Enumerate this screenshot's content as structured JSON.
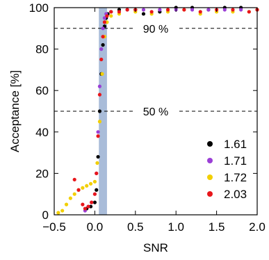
{
  "chart_data": {
    "type": "scatter",
    "xlabel": "SNR",
    "ylabel": "Acceptance [%]",
    "xlim": [
      -0.5,
      2.0
    ],
    "ylim": [
      0,
      100
    ],
    "xticks": [
      -0.5,
      0.0,
      0.5,
      1.0,
      1.5,
      2.0
    ],
    "xtick_labels": [
      "−0.5",
      "0.0",
      "0.5",
      "1.0",
      "1.5",
      "2.0"
    ],
    "yticks": [
      0,
      20,
      40,
      60,
      80,
      100
    ],
    "ytick_labels": [
      "0",
      "20",
      "40",
      "60",
      "80",
      "100"
    ],
    "grid": false,
    "legend_position": "bottom-right",
    "shaded_band": {
      "x_start": 0.05,
      "x_end": 0.15,
      "color": "#a9bcd9"
    },
    "reference_lines": [
      {
        "y": 90,
        "label": "90 %",
        "label_x": 0.75
      },
      {
        "y": 50,
        "label": "50 %",
        "label_x": 0.75
      }
    ],
    "series": [
      {
        "name": "1.61",
        "color": "#000000",
        "x": [
          -0.1,
          -0.05,
          0.0,
          0.02,
          0.04,
          0.06,
          0.08,
          0.1,
          0.12,
          0.14,
          0.16,
          0.2,
          0.3,
          0.5,
          0.6,
          0.8,
          1.0,
          1.2,
          1.4,
          1.6,
          1.8,
          2.0
        ],
        "y": [
          3,
          4,
          6,
          12,
          28,
          50,
          68,
          82,
          91,
          95,
          97,
          98,
          99,
          99,
          97,
          98,
          100,
          100,
          99,
          100,
          100,
          99
        ]
      },
      {
        "name": "1.71",
        "color": "#9b3fd6",
        "x": [
          -0.12,
          -0.08,
          -0.04,
          0.0,
          0.02,
          0.04,
          0.06,
          0.08,
          0.1,
          0.12,
          0.14,
          0.2,
          0.4,
          0.6,
          0.8,
          1.0,
          1.2,
          1.4,
          1.6,
          1.8,
          2.0
        ],
        "y": [
          2,
          4,
          6,
          10,
          20,
          40,
          62,
          80,
          90,
          95,
          97,
          98,
          99,
          99,
          99,
          99,
          99,
          99,
          99,
          99,
          99
        ]
      },
      {
        "name": "1.72",
        "color": "#f2cf00",
        "x": [
          -0.45,
          -0.4,
          -0.35,
          -0.3,
          -0.25,
          -0.2,
          -0.15,
          -0.1,
          -0.05,
          0.0,
          0.03,
          0.06,
          0.09,
          0.12,
          0.15,
          0.2,
          0.3,
          0.5,
          0.7,
          0.9,
          1.1,
          1.3,
          1.5,
          1.7,
          1.9,
          2.0
        ],
        "y": [
          1,
          2,
          5,
          8,
          10,
          12,
          13,
          14,
          15,
          16,
          25,
          45,
          68,
          86,
          93,
          96,
          97,
          98,
          97,
          98,
          99,
          97,
          98,
          98,
          98,
          99
        ]
      },
      {
        "name": "2.03",
        "color": "#e8161b",
        "x": [
          -0.25,
          -0.2,
          -0.15,
          -0.12,
          -0.08,
          -0.04,
          0.0,
          0.02,
          0.04,
          0.06,
          0.08,
          0.1,
          0.12,
          0.15,
          0.2,
          0.3,
          0.4,
          0.5,
          0.7,
          0.9,
          1.1,
          1.3,
          1.5,
          1.7,
          1.9,
          2.0
        ],
        "y": [
          17,
          12,
          5,
          3,
          4,
          6,
          10,
          20,
          38,
          58,
          75,
          86,
          93,
          96,
          98,
          98,
          99,
          99,
          98,
          99,
          99,
          98,
          99,
          99,
          98,
          99
        ]
      }
    ]
  }
}
